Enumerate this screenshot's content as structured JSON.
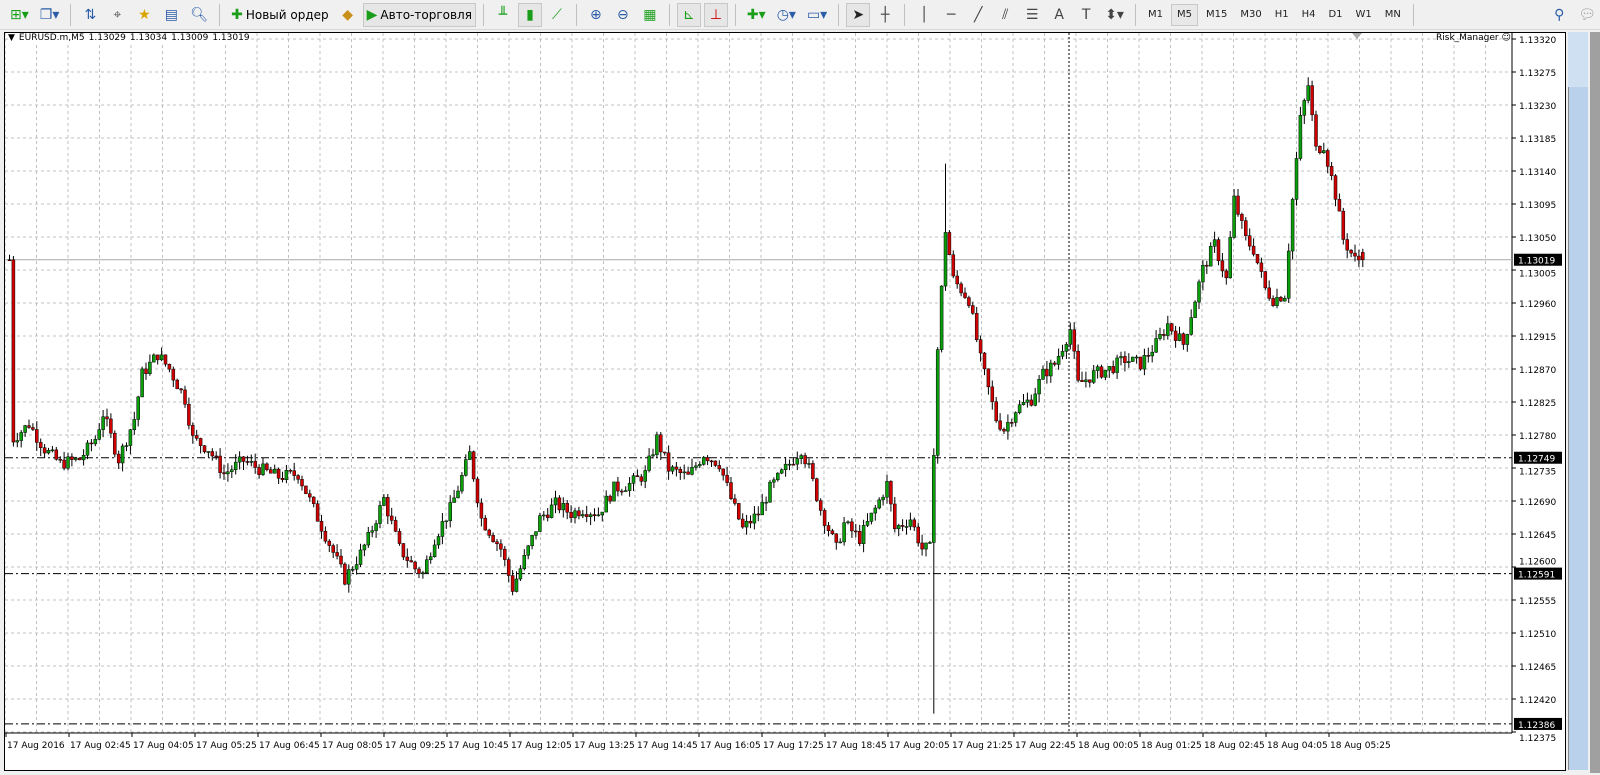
{
  "toolbar": {
    "buttons": [
      {
        "icon": "new-chart-icon"
      },
      {
        "icon": "profiles-icon"
      },
      {
        "icon": "market-watch-icon"
      },
      {
        "icon": "crosshair-navigator-icon"
      },
      {
        "icon": "favorites-icon"
      },
      {
        "icon": "terminal-icon"
      },
      {
        "icon": "strategy-tester-icon"
      }
    ],
    "new_order": "Новый ордер",
    "auto_trading": "Авто-торговля",
    "timeframes": [
      "M1",
      "M5",
      "M15",
      "M30",
      "H1",
      "H4",
      "D1",
      "W1",
      "MN"
    ],
    "active_timeframe": "M5"
  },
  "chart": {
    "symbol_header": "EURUSD.m,M5",
    "ohlc": [
      "1.13029",
      "1.13034",
      "1.13009",
      "1.13019"
    ],
    "indicator": "Risk_Manager",
    "price_ticks": [
      "1.13320",
      "1.13275",
      "1.13230",
      "1.13185",
      "1.13140",
      "1.13095",
      "1.13050",
      "1.13005",
      "1.12960",
      "1.12915",
      "1.12870",
      "1.12825",
      "1.12780",
      "1.12735",
      "1.12690",
      "1.12645",
      "1.12600",
      "1.12555",
      "1.12510",
      "1.12465",
      "1.12420",
      "1.12375"
    ],
    "time_labels": [
      "17 Aug 2016",
      "17 Aug 02:45",
      "17 Aug 04:05",
      "17 Aug 05:25",
      "17 Aug 06:45",
      "17 Aug 08:05",
      "17 Aug 09:25",
      "17 Aug 10:45",
      "17 Aug 12:05",
      "17 Aug 13:25",
      "17 Aug 14:45",
      "17 Aug 16:05",
      "17 Aug 17:25",
      "17 Aug 18:45",
      "17 Aug 20:05",
      "17 Aug 21:25",
      "17 Aug 22:45",
      "18 Aug 00:05",
      "18 Aug 01:25",
      "18 Aug 02:45",
      "18 Aug 04:05",
      "18 Aug 05:25"
    ],
    "bid": "1.13019",
    "levels": [
      "1.12749",
      "1.12591",
      "1.12386"
    ],
    "colors": {
      "bull": "#0a9e0a",
      "bear": "#d00000",
      "wick": "#000000",
      "grid": "#c0c0c0",
      "label_bg": "#000000"
    },
    "close_path": [
      [
        1,
        1.12775
      ],
      [
        5,
        1.12795
      ],
      [
        9,
        1.12761
      ],
      [
        13,
        1.12741
      ],
      [
        18,
        1.12747
      ],
      [
        22,
        1.12775
      ],
      [
        24,
        1.12809
      ],
      [
        28,
        1.12747
      ],
      [
        32,
        1.12802
      ],
      [
        34,
        1.12863
      ],
      [
        38,
        1.1289
      ],
      [
        41,
        1.1287
      ],
      [
        45,
        1.12829
      ],
      [
        47,
        1.12775
      ],
      [
        51,
        1.12761
      ],
      [
        55,
        1.12727
      ],
      [
        60,
        1.12745
      ],
      [
        64,
        1.12734
      ],
      [
        69,
        1.12723
      ],
      [
        74,
        1.12727
      ],
      [
        78,
        1.12679
      ],
      [
        82,
        1.12632
      ],
      [
        86,
        1.12584
      ],
      [
        90,
        1.12618
      ],
      [
        92,
        1.12639
      ],
      [
        96,
        1.12693
      ],
      [
        100,
        1.12625
      ],
      [
        104,
        1.12598
      ],
      [
        106,
        1.12591
      ],
      [
        109,
        1.12639
      ],
      [
        113,
        1.12679
      ],
      [
        115,
        1.12707
      ],
      [
        118,
        1.12754
      ],
      [
        121,
        1.12666
      ],
      [
        126,
        1.12625
      ],
      [
        129,
        1.12571
      ],
      [
        132,
        1.12611
      ],
      [
        136,
        1.12666
      ],
      [
        140,
        1.12686
      ],
      [
        144,
        1.12673
      ],
      [
        147,
        1.12679
      ],
      [
        151,
        1.12673
      ],
      [
        155,
        1.12707
      ],
      [
        159,
        1.12713
      ],
      [
        163,
        1.12727
      ],
      [
        166,
        1.12775
      ],
      [
        169,
        1.12734
      ],
      [
        174,
        1.12723
      ],
      [
        178,
        1.12754
      ],
      [
        182,
        1.12741
      ],
      [
        185,
        1.12693
      ],
      [
        188,
        1.12652
      ],
      [
        192,
        1.12673
      ],
      [
        195,
        1.12707
      ],
      [
        199,
        1.12734
      ],
      [
        203,
        1.12761
      ],
      [
        205,
        1.12734
      ],
      [
        208,
        1.12679
      ],
      [
        212,
        1.12625
      ],
      [
        214,
        1.12659
      ],
      [
        218,
        1.12639
      ],
      [
        222,
        1.12679
      ],
      [
        225,
        1.12713
      ],
      [
        227,
        1.12652
      ],
      [
        231,
        1.12666
      ],
      [
        234,
        1.12625
      ],
      [
        236,
        1.12625
      ],
      [
        238,
        1.12897
      ],
      [
        240,
        1.1306
      ],
      [
        242,
        1.12992
      ],
      [
        246,
        1.12965
      ],
      [
        249,
        1.12883
      ],
      [
        253,
        1.12802
      ],
      [
        255,
        1.12788
      ],
      [
        258,
        1.12815
      ],
      [
        262,
        1.12829
      ],
      [
        265,
        1.12863
      ],
      [
        268,
        1.12877
      ],
      [
        272,
        1.12924
      ],
      [
        274,
        1.12849
      ],
      [
        278,
        1.12863
      ],
      [
        282,
        1.1287
      ],
      [
        286,
        1.12883
      ],
      [
        290,
        1.12877
      ],
      [
        294,
        1.12904
      ],
      [
        297,
        1.12931
      ],
      [
        301,
        1.12904
      ],
      [
        304,
        1.12965
      ],
      [
        306,
        1.13006
      ],
      [
        309,
        1.1304
      ],
      [
        312,
        1.12992
      ],
      [
        314,
        1.13101
      ],
      [
        317,
        1.13047
      ],
      [
        319,
        1.13033
      ],
      [
        322,
        1.12979
      ],
      [
        324,
        1.12965
      ],
      [
        327,
        1.12972
      ],
      [
        329,
        1.13101
      ],
      [
        331,
        1.1321
      ],
      [
        333,
        1.13257
      ],
      [
        335,
        1.13169
      ],
      [
        337,
        1.13176
      ],
      [
        340,
        1.13108
      ],
      [
        342,
        1.13047
      ],
      [
        345,
        1.13019
      ],
      [
        347,
        1.13019
      ]
    ],
    "spike": {
      "bar": 237,
      "low": 1.124,
      "high_bar": 240,
      "high": 1.1315
    }
  }
}
